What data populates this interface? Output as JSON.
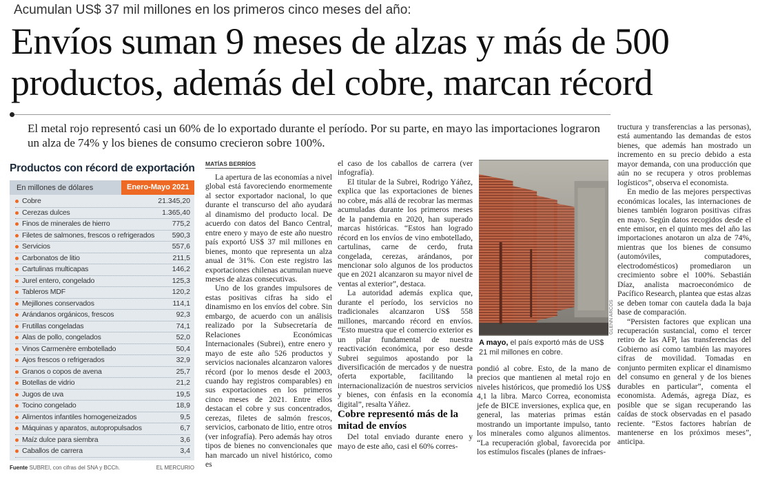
{
  "kicker": "Acumulan US$ 37 mil millones en los primeros cinco meses del año:",
  "headline": "Envíos suman 9 meses de alzas y más de 500 productos, además del cobre, marcan récord",
  "deck": "El metal rojo representó casi un 60% de lo exportado durante el período. Por su parte, en mayo las importaciones lograron un alza de 74% y los bienes de consumo crecieron sobre 100%.",
  "table": {
    "title": "Productos con récord de exportación",
    "unit": "En millones de dólares",
    "period": "Enero-Mayo 2021",
    "accent_color": "#ee6a24",
    "rows": [
      {
        "name": "Cobre",
        "value": "21.345,20"
      },
      {
        "name": "Cerezas dulces",
        "value": "1.365,40"
      },
      {
        "name": "Finos de minerales de hierro",
        "value": "775,2"
      },
      {
        "name": "Filetes de salmones, frescos o refrigerados",
        "value": "590,3"
      },
      {
        "name": "Servicios",
        "value": "557,6"
      },
      {
        "name": "Carbonatos de litio",
        "value": "211,5"
      },
      {
        "name": "Cartulinas multicapas",
        "value": "146,2"
      },
      {
        "name": "Jurel entero, congelado",
        "value": "125,3"
      },
      {
        "name": "Tableros MDF",
        "value": "120,2"
      },
      {
        "name": "Mejillones conservados",
        "value": "114,1"
      },
      {
        "name": "Arándanos orgánicos, frescos",
        "value": "92,3"
      },
      {
        "name": "Frutillas congeladas",
        "value": "74,1"
      },
      {
        "name": "Alas de pollo, congelados",
        "value": "52,0"
      },
      {
        "name": "Vinos Carmenère embotellado",
        "value": "50,4"
      },
      {
        "name": "Ajos frescos o refrigerados",
        "value": "32,9"
      },
      {
        "name": "Granos o copos de avena",
        "value": "25,7"
      },
      {
        "name": "Botellas de vidrio",
        "value": "21,2"
      },
      {
        "name": "Jugos de uva",
        "value": "19,5"
      },
      {
        "name": "Tocino congelado",
        "value": "18,9"
      },
      {
        "name": "Alimentos infantiles homogeneizados",
        "value": "9,5"
      },
      {
        "name": "Máquinas y aparatos, autopropulsados",
        "value": "6,7"
      },
      {
        "name": "Maíz dulce para siembra",
        "value": "3,6"
      },
      {
        "name": "Caballos de carrera",
        "value": "3,4"
      }
    ],
    "source_label": "Fuente",
    "source": "SUBREI, con cifras del SNA y BCCh.",
    "publisher": "EL MERCURIO"
  },
  "byline": "MATÍAS BERRÍOS",
  "body": {
    "col1": [
      "La apertura de las economías a nivel global está favoreciendo enormemente al sector exportador nacional, lo que durante el transcurso del año ayudará al dinamismo del producto local. De acuerdo con datos del Banco Central, entre enero y mayo de este año nuestro país exportó US$ 37 mil millones en bienes, monto que representa un alza anual de 31%. Con este registro las exportaciones chilenas acumulan nueve meses de alzas consecutivas.",
      "Uno de los grandes impulsores de estas positivas cifras ha sido el dinamismo en los envíos del cobre. Sin embargo, de acuerdo con un análisis realizado por la Subsecretaría de Relaciones Económicas Internacionales (Subrei), entre enero y mayo de este año 526 productos y servicios nacionales alcanzaron valores récord (por lo menos desde el 2003, cuando hay registros comparables) en sus exportaciones en los primeros cinco meses de 2021. Entre ellos destacan el cobre y sus concentrados, cerezas, filetes de salmón frescos, servicios, carbonato de litio, entre otros (ver infografía). Pero además hay otros tipos de bienes no convencionales que han marcado un nivel histórico, como es"
    ],
    "col2_cont": "el caso de los caballos de carrera (ver infografía).",
    "col2": [
      "El titular de la Subrei, Rodrigo Yáñez, explica que las exportaciones de bienes no cobre, más allá de recobrar las mermas acumuladas durante los primeros meses de la pandemia en 2020, han superado marcas históricas. “Estos han logrado récord en los envíos de vino embotellado, cartulinas, carne de cerdo, fruta congelada, cerezas, arándanos, por mencionar solo algunos de los productos que en 2021 alcanzaron su mayor nivel de ventas al exterior”, destaca.",
      "La autoridad además explica que, durante el período, los servicios no tradicionales alcanzaron US$ 558 millones, marcando récord en envíos. “Esto muestra que el comercio exterior es un pilar fundamental de nuestra reactivación económica, por eso desde Subrei seguimos apostando por la diversificación de mercados y de nuestra oferta exportable, facilitando la internacionalización de nuestros servicios y bienes, con énfasis en la economía digital”, resalta Yáñez."
    ],
    "subhead": "Cobre representó más de la mitad de envíos",
    "col2_after": "Del total enviado durante enero y mayo de este año, casi el 60% corres-",
    "col3": "pondió al cobre. Esto, de la mano de precios que mantienen al metal rojo en niveles históricos, que promedió los US$ 4,1 la libra. Marco Correa, economista jefe de BICE inversiones, explica que, en general, las materias primas están mostrando un importante impulso, tanto los minerales como algunos alimentos. “La recuperación global, favorecida por los estímulos fiscales (planes de infraes-",
    "col4_cont": "tructura y transferencias a las personas), está aumentando las demandas de estos bienes, que además han mostrado un incremento en su precio debido a esta mayor demanda, con una producción que aún no se recupera y otros problemas logísticos”, observa el economista.",
    "col4": [
      "En medio de las mejores perspectivas económicas locales, las internaciones de bienes también lograron positivas cifras en mayo. Según datos recogidos desde el ente emisor, en el quinto mes del año las importaciones anotaron un alza de 74%, mientras que los bienes de consumo (automóviles, computadores, electrodomésticos) promediaron un crecimiento sobre el 100%. Sebastián Díaz, analista macroeconómico de Pacífico Research, plantea que estas alzas se deben tomar con cautela dada la baja base de comparación.",
      "“Persisten factores que explican una recuperación sustancial, como el tercer retiro de las AFP, las transferencias del Gobierno así como también las mayores cifras de movilidad. Tomadas en conjunto permiten explicar el dinamismo del consumo en general y de los bienes durables en particular”, comenta el economista. Además, agrega Díaz, es posible que se sigan recuperando las caídas de stock observadas en el pasado reciente. “Estos factores habrían de mantenerse en los próximos meses”, anticipa."
    ]
  },
  "photo": {
    "credit": "GLENN ARCOS",
    "caption_lead": "A mayo,",
    "caption": " el país exportó más de US$ 21 mil millones en cobre."
  }
}
